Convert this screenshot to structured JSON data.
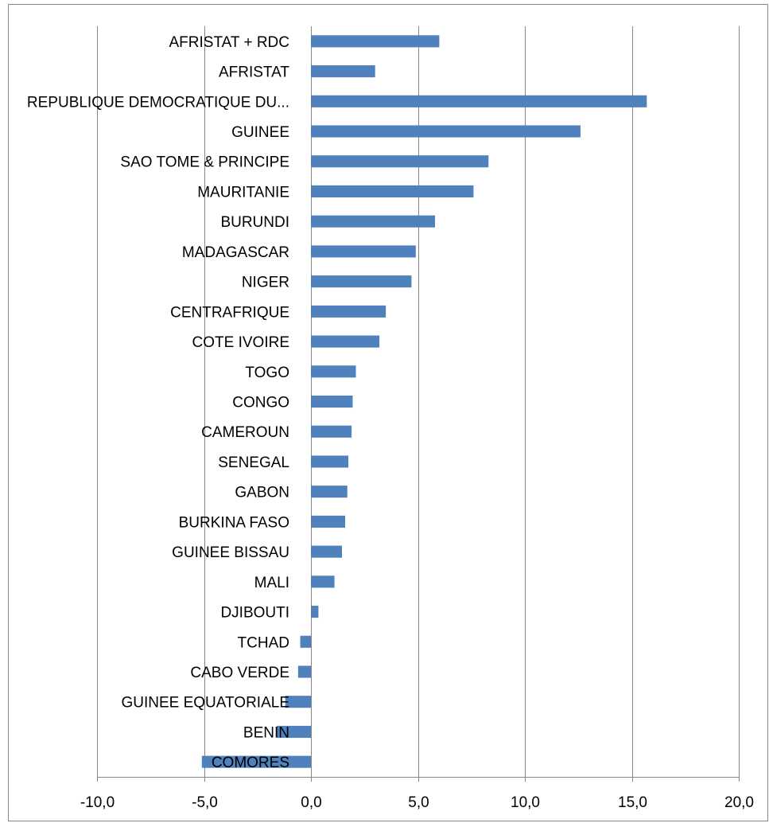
{
  "chart_data": {
    "type": "bar",
    "orientation": "horizontal",
    "title": "",
    "xlabel": "",
    "ylabel": "",
    "xlim": [
      -10,
      20
    ],
    "x_ticks": [
      -10,
      -5,
      0,
      5,
      10,
      15,
      20
    ],
    "x_tick_labels": [
      "-10,0",
      "-5,0",
      "0,0",
      "5,0",
      "10,0",
      "15,0",
      "20,0"
    ],
    "grid": "vertical",
    "legend": "none",
    "bar_color": "#4f81bd",
    "categories": [
      "AFRISTAT + RDC",
      "AFRISTAT",
      "REPUBLIQUE DEMOCRATIQUE DU...",
      "GUINEE",
      "SAO TOME & PRINCIPE",
      "MAURITANIE",
      "BURUNDI",
      "MADAGASCAR",
      "NIGER",
      "CENTRAFRIQUE",
      "COTE IVOIRE",
      "TOGO",
      "CONGO",
      "CAMEROUN",
      "SENEGAL",
      "GABON",
      "BURKINA FASO",
      "GUINEE BISSAU",
      "MALI",
      "DJIBOUTI",
      "TCHAD",
      "CABO VERDE",
      "GUINEE EQUATORIALE",
      "BENIN",
      "COMORES"
    ],
    "values": [
      6.0,
      3.0,
      15.7,
      12.6,
      8.3,
      7.6,
      5.8,
      4.9,
      4.7,
      3.5,
      3.2,
      2.1,
      1.95,
      1.9,
      1.75,
      1.7,
      1.6,
      1.45,
      1.1,
      0.35,
      -0.5,
      -0.6,
      -1.2,
      -1.6,
      -5.1
    ]
  }
}
